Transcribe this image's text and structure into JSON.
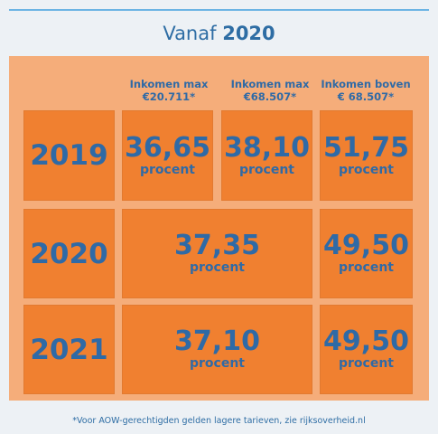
{
  "title": {
    "prefix": "Vanaf",
    "year": "2020"
  },
  "headers": [
    {
      "line1": "Inkomen max",
      "line2": "€20.711*"
    },
    {
      "line1": "Inkomen max",
      "line2": "€68.507*"
    },
    {
      "line1": "Inkomen boven",
      "line2": "€ 68.507*"
    }
  ],
  "rows": [
    {
      "year": "2019",
      "cells": [
        {
          "value": "36,65",
          "unit": "procent"
        },
        {
          "value": "38,10",
          "unit": "procent"
        },
        {
          "value": "51,75",
          "unit": "procent"
        }
      ]
    },
    {
      "year": "2020",
      "cells": [
        {
          "value": "37,35",
          "unit": "procent"
        },
        {
          "value": "49,50",
          "unit": "procent"
        }
      ]
    },
    {
      "year": "2021",
      "cells": [
        {
          "value": "37,10",
          "unit": "procent"
        },
        {
          "value": "49,50",
          "unit": "procent"
        }
      ]
    }
  ],
  "footnote": "*Voor AOW-gerechtigden gelden lagere tarieven, zie rijksoverheid.nl",
  "colors": {
    "background": "#edf1f5",
    "panel": "#f5ad7a",
    "box": "#f08030",
    "text": "#2f6aa6",
    "rule": "#6cb4e4"
  }
}
